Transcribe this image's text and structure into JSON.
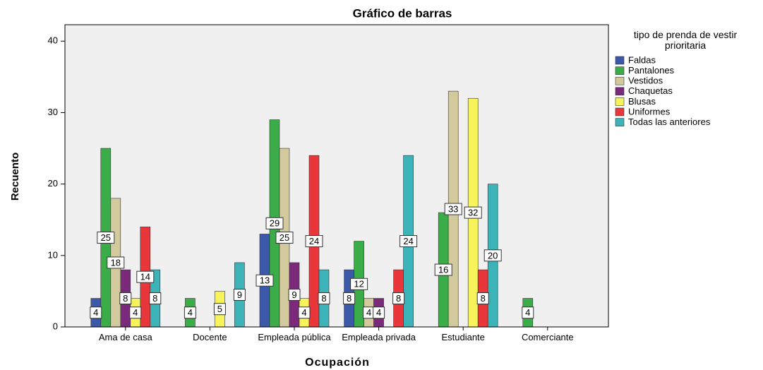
{
  "chart_data": {
    "type": "bar",
    "title": "Gráfico de barras",
    "x_label": "Ocupación",
    "y_label": "Recuento",
    "legend_title": "tipo de prenda de vestir prioritaria",
    "legend_position": "right",
    "categories": [
      "Ama de casa",
      "Docente",
      "Empleada pública",
      "Empleada privada",
      "Estudiante",
      "Comerciante"
    ],
    "series": [
      {
        "name": "Faldas",
        "color": "#3c58a8",
        "values": [
          4,
          null,
          13,
          8,
          null,
          null
        ]
      },
      {
        "name": "Pantalones",
        "color": "#3aac48",
        "values": [
          25,
          4,
          29,
          12,
          16,
          4
        ]
      },
      {
        "name": "Vestidos",
        "color": "#d2ca9c",
        "values": [
          18,
          null,
          25,
          4,
          33,
          null
        ]
      },
      {
        "name": "Chaquetas",
        "color": "#7b2a7b",
        "values": [
          8,
          null,
          9,
          4,
          null,
          null
        ]
      },
      {
        "name": "Blusas",
        "color": "#f6f45a",
        "values": [
          4,
          5,
          4,
          null,
          32,
          null
        ]
      },
      {
        "name": "Uniformes",
        "color": "#e8363a",
        "values": [
          14,
          null,
          24,
          8,
          8,
          null
        ]
      },
      {
        "name": "Todas las anteriores",
        "color": "#3cb3b8",
        "values": [
          8,
          9,
          8,
          24,
          20,
          null
        ]
      }
    ],
    "ylim": [
      0,
      42.3
    ],
    "yticks": [
      0,
      10,
      20,
      30,
      40
    ],
    "grid": false
  }
}
